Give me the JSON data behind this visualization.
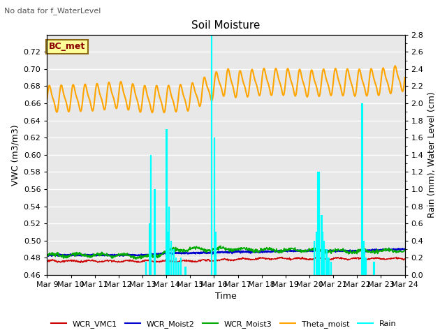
{
  "title": "Soil Moisture",
  "top_left_note": "No data for f_WaterLevel",
  "annotation": "BC_met",
  "xlabel": "Time",
  "ylabel_left": "VWC (m3/m3)",
  "ylabel_right": "Rain (mm), Water Level (cm)",
  "ylim_left": [
    0.46,
    0.74
  ],
  "ylim_right": [
    0.0,
    2.8
  ],
  "yticks_left": [
    0.46,
    0.48,
    0.5,
    0.52,
    0.54,
    0.56,
    0.58,
    0.6,
    0.62,
    0.64,
    0.66,
    0.68,
    0.7,
    0.72
  ],
  "yticks_right": [
    0.0,
    0.2,
    0.4,
    0.6,
    0.8,
    1.0,
    1.2,
    1.4,
    1.6,
    1.8,
    2.0,
    2.2,
    2.4,
    2.6,
    2.8
  ],
  "xtick_labels": [
    "Mar 9",
    "Mar 10",
    "Mar 11",
    "Mar 12",
    "Mar 13",
    "Mar 14",
    "Mar 15",
    "Mar 16",
    "Mar 17",
    "Mar 18",
    "Mar 19",
    "Mar 20",
    "Mar 21",
    "Mar 22",
    "Mar 23",
    "Mar 24"
  ],
  "colors": {
    "WCR_VMC1": "#cc0000",
    "WCR_Moist2": "#0000cc",
    "WCR_Moist3": "#00aa00",
    "Theta_moist": "#ffa500",
    "Rain": "cyan",
    "background": "#e8e8e8"
  },
  "figsize": [
    6.4,
    4.8
  ],
  "dpi": 100,
  "days": 15,
  "n_points": 1080
}
